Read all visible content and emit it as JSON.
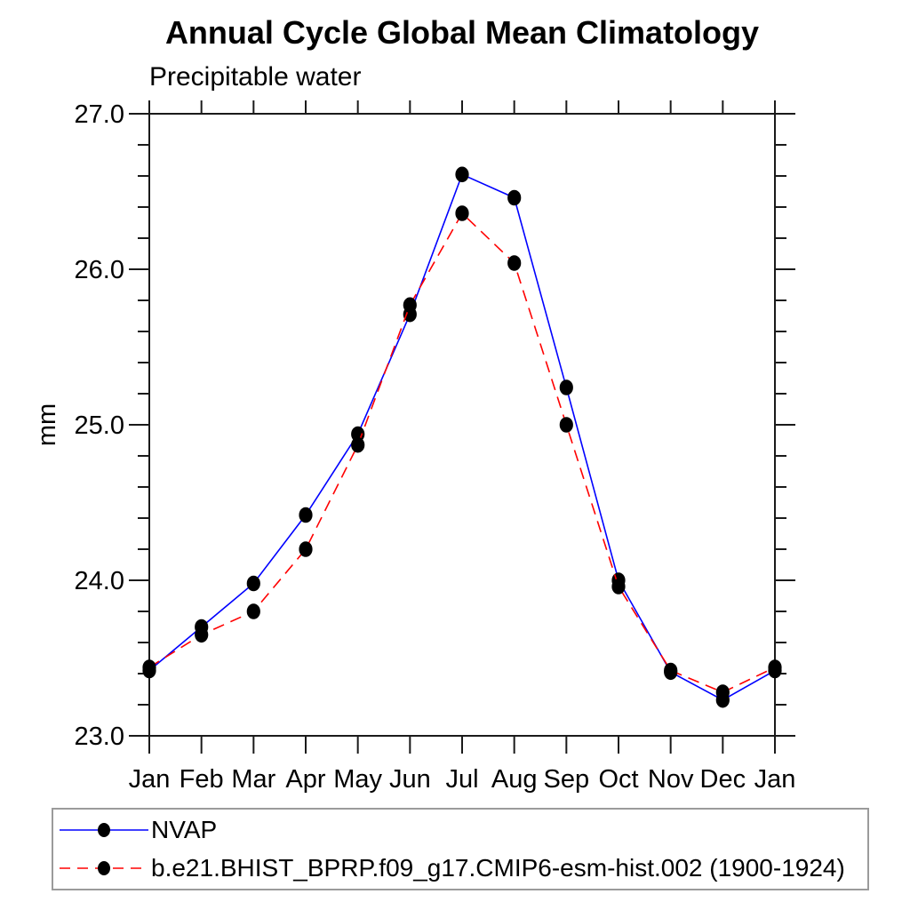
{
  "page_background": "#ffffff",
  "chart_data": {
    "type": "line",
    "title": "Annual Cycle Global Mean Climatology",
    "subtitle": "Precipitable water",
    "ylabel": "mm",
    "xlabel": "",
    "x_categories": [
      "Jan",
      "Feb",
      "Mar",
      "Apr",
      "May",
      "Jun",
      "Jul",
      "Aug",
      "Sep",
      "Oct",
      "Nov",
      "Dec",
      "Jan"
    ],
    "ylim": [
      23.0,
      27.0
    ],
    "yticks_major": [
      23.0,
      24.0,
      25.0,
      26.0,
      27.0
    ],
    "ytick_labels": [
      "23.0",
      "24.0",
      "25.0",
      "26.0",
      "27.0"
    ],
    "ytick_minor_step": 0.2,
    "grid": false,
    "legend_position": "bottom-left",
    "frame_color": "#1a1a1a",
    "series": [
      {
        "name": "NVAP",
        "color": "#0000ff",
        "line_style": "solid",
        "marker": "filled-circle",
        "marker_color": "#000000",
        "values": [
          23.42,
          23.7,
          23.98,
          24.42,
          24.94,
          25.71,
          26.61,
          26.46,
          25.24,
          24.0,
          23.41,
          23.23,
          23.42
        ]
      },
      {
        "name": "b.e21.BHIST_BPRP.f09_g17.CMIP6-esm-hist.002 (1900-1924)",
        "color": "#ff0000",
        "line_style": "dashed",
        "marker": "filled-circle",
        "marker_color": "#000000",
        "values": [
          23.44,
          23.65,
          23.8,
          24.2,
          24.87,
          25.77,
          26.36,
          26.04,
          25.0,
          23.96,
          23.42,
          23.28,
          23.44
        ]
      }
    ]
  }
}
